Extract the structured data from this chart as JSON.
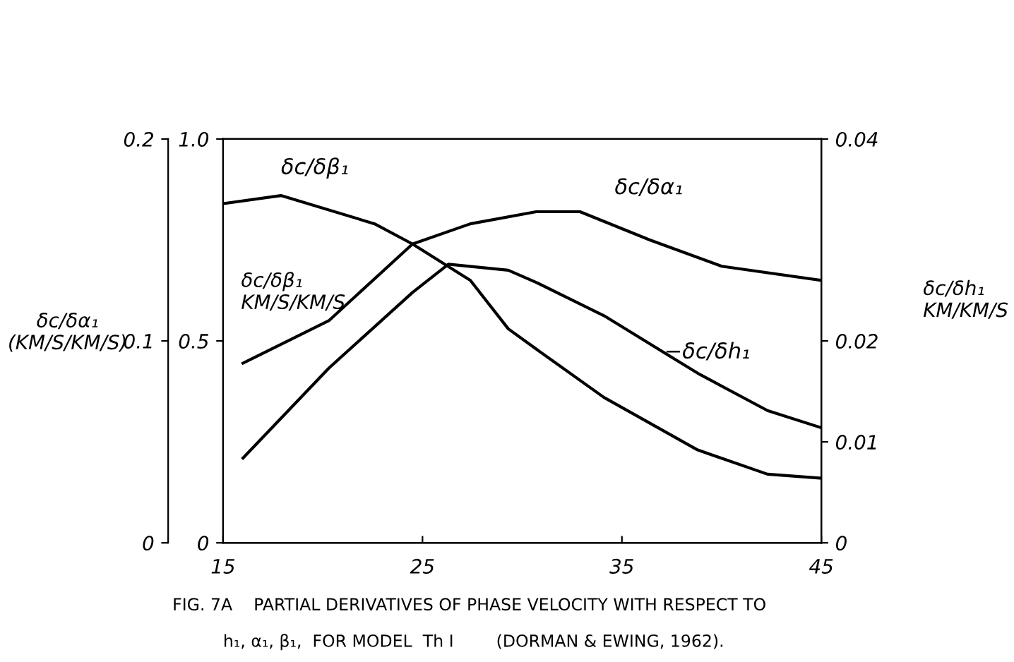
{
  "chart_data": {
    "type": "line",
    "annotations": [
      "FIG. 7A    PARTIAL DERIVATIVES OF PHASE VELOCITY WITH RESPECT TO",
      "h₁, α₁, β₁,  FOR MODEL  Th I        (DORMAN & EWING, 1962)."
    ],
    "ylabel": "δc/δβ₁\nKM/S/KM/S",
    "y2label": "δc/δh₁\nKM/KM/S",
    "y3label": "δc/δα₁\n(KM/S/KM/S)",
    "xlim": [
      15,
      45
    ],
    "xticks": [
      15,
      25,
      35,
      45
    ],
    "ylim": [
      0,
      1.0
    ],
    "yticks": [
      0,
      0.5,
      {
        "value": 1.0,
        "label": "1.0"
      }
    ],
    "y2lim": [
      0,
      0.04
    ],
    "y2ticks": [
      0,
      0.01,
      0.02,
      0.04
    ],
    "y3lim": [
      0,
      0.2
    ],
    "y3ticks": [
      0,
      0.1,
      0.2
    ],
    "grid": false,
    "legend": false,
    "marker": "none",
    "line_style": "solid",
    "series": [
      {
        "name": "δc/δβ₁",
        "color": "#000000",
        "x": [
          15.0,
          17.9,
          22.6,
          24.5,
          27.4,
          29.3,
          30.7,
          34.1,
          38.8,
          42.3,
          45.0
        ],
        "values": [
          0.84,
          0.86,
          0.79,
          0.74,
          0.65,
          0.53,
          0.48,
          0.36,
          0.23,
          0.17,
          0.16
        ]
      },
      {
        "name": "δc/δα₁",
        "color": "#000000",
        "axis": "y3",
        "x": [
          16.0,
          20.3,
          24.5,
          27.4,
          30.7,
          32.9,
          36.4,
          40.0,
          45.0
        ],
        "values": [
          0.089,
          0.11,
          0.148,
          0.158,
          0.164,
          0.164,
          0.15,
          0.137,
          0.13
        ]
      },
      {
        "name": "−δc/δh₁",
        "color": "#000000",
        "axis": "y2",
        "x": [
          16.0,
          20.3,
          24.5,
          26.3,
          29.3,
          30.7,
          34.1,
          38.8,
          42.3,
          45.0
        ],
        "values": [
          0.0084,
          0.0173,
          0.0248,
          0.0276,
          0.027,
          0.0258,
          0.0225,
          0.0168,
          0.0131,
          0.0114
        ]
      }
    ]
  }
}
